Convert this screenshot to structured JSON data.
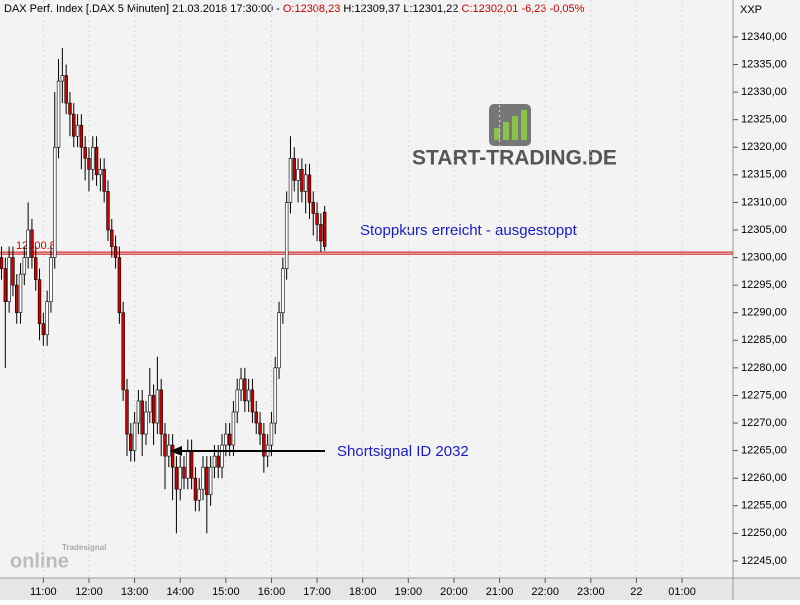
{
  "chart_data": {
    "type": "candlestick",
    "header": {
      "instrument": "DAX Perf. Index [.DAX  5 Minuten] 21.03.2018 17:30:00 -",
      "open": "O:12308,23",
      "high": "H:12309,37",
      "low": "L:12301,22",
      "close": "C:12302,01",
      "change": "-6,23",
      "change_pct": "-0,05%"
    },
    "axis_label": "XXP",
    "annotations": [
      "Stoppkurs erreicht - ausgestoppt",
      "Shortsignal ID 2032"
    ],
    "logo_text": "START-TRADING.DE",
    "watermark": [
      "Tradesignal",
      "online"
    ],
    "level": 12300.8,
    "level_color": "#cc0000",
    "up_color": "#ffffff",
    "down_color": "#cc0000",
    "x": [
      605,
      610,
      615,
      620,
      625,
      630,
      635,
      640,
      645,
      650,
      655,
      660,
      665,
      670,
      675,
      680,
      685,
      690,
      695,
      700,
      705,
      710,
      715,
      720,
      725,
      730,
      735,
      740,
      745,
      750,
      755,
      760,
      765,
      770,
      775,
      780,
      785,
      790,
      795,
      800,
      805,
      810,
      815,
      820,
      825,
      830,
      835,
      840,
      845,
      850,
      855,
      860,
      865,
      870,
      875,
      880,
      885,
      890,
      895,
      900,
      905,
      910,
      915,
      920,
      925,
      930,
      935,
      940,
      945,
      950,
      955,
      960,
      965,
      970,
      975,
      980,
      985,
      990,
      995,
      1000,
      1005,
      1010,
      1015,
      1020,
      1025,
      1030
    ],
    "open": [
      12300,
      12298,
      12292,
      12300,
      12295,
      12290,
      12297,
      12300,
      12305,
      12300,
      12296,
      12288,
      12286,
      12292,
      12300,
      12320,
      12332,
      12333,
      12328,
      12326,
      12322,
      12324,
      12320,
      12318,
      12316,
      12320,
      12315,
      12316,
      12312,
      12305,
      12302,
      12300,
      12290,
      12276,
      12268,
      12265,
      12270,
      12274,
      12268,
      12272,
      12275,
      12270,
      12276,
      12268,
      12264,
      12266,
      12262,
      12258,
      12262,
      12260,
      12265,
      12260,
      12256,
      12258,
      12262,
      12257,
      12262,
      12264,
      12262,
      12266,
      12268,
      12266,
      12272,
      12276,
      12278,
      12274,
      12276,
      12272,
      12270,
      12268,
      12264,
      12266,
      12270,
      12280,
      12290,
      12298,
      12310,
      12318,
      12314,
      12316,
      12312,
      12315,
      12310,
      12308,
      12306,
      12308.23
    ],
    "high": [
      12302,
      12300,
      12302,
      12302,
      12297,
      12299,
      12302,
      12310,
      12307,
      12302,
      12298,
      12290,
      12294,
      12302,
      12330,
      12336,
      12338,
      12335,
      12330,
      12328,
      12326,
      12326,
      12322,
      12320,
      12322,
      12322,
      12318,
      12318,
      12314,
      12307,
      12304,
      12302,
      12292,
      12278,
      12270,
      12272,
      12276,
      12276,
      12274,
      12280,
      12277,
      12282,
      12278,
      12270,
      12268,
      12268,
      12264,
      12264,
      12264,
      12267,
      12267,
      12262,
      12260,
      12264,
      12264,
      12264,
      12266,
      12266,
      12268,
      12270,
      12270,
      12274,
      12278,
      12280,
      12280,
      12278,
      12278,
      12274,
      12272,
      12270,
      12268,
      12272,
      12282,
      12292,
      12300,
      12312,
      12322,
      12320,
      12318,
      12318,
      12317,
      12317,
      12312,
      12310,
      12308,
      12309.37
    ],
    "low": [
      12296,
      12280,
      12290,
      12293,
      12288,
      12288,
      12295,
      12298,
      12298,
      12294,
      12285,
      12284,
      12284,
      12290,
      12298,
      12318,
      12328,
      12326,
      12322,
      12320,
      12320,
      12316,
      12314,
      12312,
      12314,
      12313,
      12312,
      12310,
      12303,
      12300,
      12298,
      12288,
      12274,
      12264,
      12263,
      12263,
      12268,
      12264,
      12266,
      12270,
      12266,
      12268,
      12264,
      12258,
      12262,
      12256,
      12250,
      12256,
      12258,
      12258,
      12258,
      12254,
      12254,
      12256,
      12250,
      12255,
      12260,
      12260,
      12260,
      12264,
      12264,
      12264,
      12270,
      12274,
      12272,
      12272,
      12270,
      12268,
      12266,
      12261,
      12262,
      12264,
      12268,
      12278,
      12288,
      12296,
      12308,
      12312,
      12310,
      12310,
      12308,
      12307,
      12304,
      12303,
      12301,
      12301.22
    ],
    "close": [
      12298,
      12292,
      12300,
      12295,
      12290,
      12297,
      12300,
      12305,
      12300,
      12296,
      12288,
      12286,
      12292,
      12300,
      12320,
      12332,
      12333,
      12328,
      12326,
      12322,
      12324,
      12320,
      12318,
      12316,
      12320,
      12315,
      12316,
      12312,
      12305,
      12302,
      12300,
      12290,
      12276,
      12268,
      12265,
      12270,
      12274,
      12268,
      12272,
      12275,
      12270,
      12276,
      12268,
      12264,
      12266,
      12262,
      12258,
      12262,
      12260,
      12265,
      12260,
      12256,
      12258,
      12262,
      12257,
      12262,
      12264,
      12262,
      12266,
      12268,
      12266,
      12272,
      12276,
      12278,
      12274,
      12276,
      12272,
      12270,
      12268,
      12264,
      12266,
      12270,
      12280,
      12290,
      12298,
      12310,
      12318,
      12314,
      12316,
      12312,
      12315,
      12310,
      12308,
      12306,
      12303,
      12302.01
    ],
    "xlim": [
      603,
      1567
    ],
    "xticks": [
      {
        "value": 660,
        "label": "11:00"
      },
      {
        "value": 720,
        "label": "12:00"
      },
      {
        "value": 780,
        "label": "13:00"
      },
      {
        "value": 840,
        "label": "14:00"
      },
      {
        "value": 900,
        "label": "15:00"
      },
      {
        "value": 960,
        "label": "16:00"
      },
      {
        "value": 1020,
        "label": "17:00"
      },
      {
        "value": 1080,
        "label": "18:00"
      },
      {
        "value": 1140,
        "label": "19:00"
      },
      {
        "value": 1200,
        "label": "20:00"
      },
      {
        "value": 1260,
        "label": "21:00"
      },
      {
        "value": 1320,
        "label": "22:00"
      },
      {
        "value": 1380,
        "label": "23:00"
      },
      {
        "value": 1440,
        "label": "22"
      },
      {
        "value": 1500,
        "label": "01:00"
      }
    ],
    "ylim": [
      12241.9,
      12346.7
    ],
    "yticks": [
      {
        "value": 12245,
        "label": "12245,00"
      },
      {
        "value": 12250,
        "label": "12250,00"
      },
      {
        "value": 12255,
        "label": "12255,00"
      },
      {
        "value": 12260,
        "label": "12260,00"
      },
      {
        "value": 12265,
        "label": "12265,00"
      },
      {
        "value": 12270,
        "label": "12270,00"
      },
      {
        "value": 12275,
        "label": "12275,00"
      },
      {
        "value": 12280,
        "label": "12280,00"
      },
      {
        "value": 12285,
        "label": "12285,00"
      },
      {
        "value": 12290,
        "label": "12290,00"
      },
      {
        "value": 12295,
        "label": "12295,00"
      },
      {
        "value": 12300,
        "label": "12300,00"
      },
      {
        "value": 12305,
        "label": "12305,00"
      },
      {
        "value": 12310,
        "label": "12310,00"
      },
      {
        "value": 12315,
        "label": "12315,00"
      },
      {
        "value": 12320,
        "label": "12320,00"
      },
      {
        "value": 12325,
        "label": "12325,00"
      },
      {
        "value": 12330,
        "label": "12330,00"
      },
      {
        "value": 12335,
        "label": "12335,00"
      },
      {
        "value": 12340,
        "label": "12340,00"
      }
    ]
  }
}
